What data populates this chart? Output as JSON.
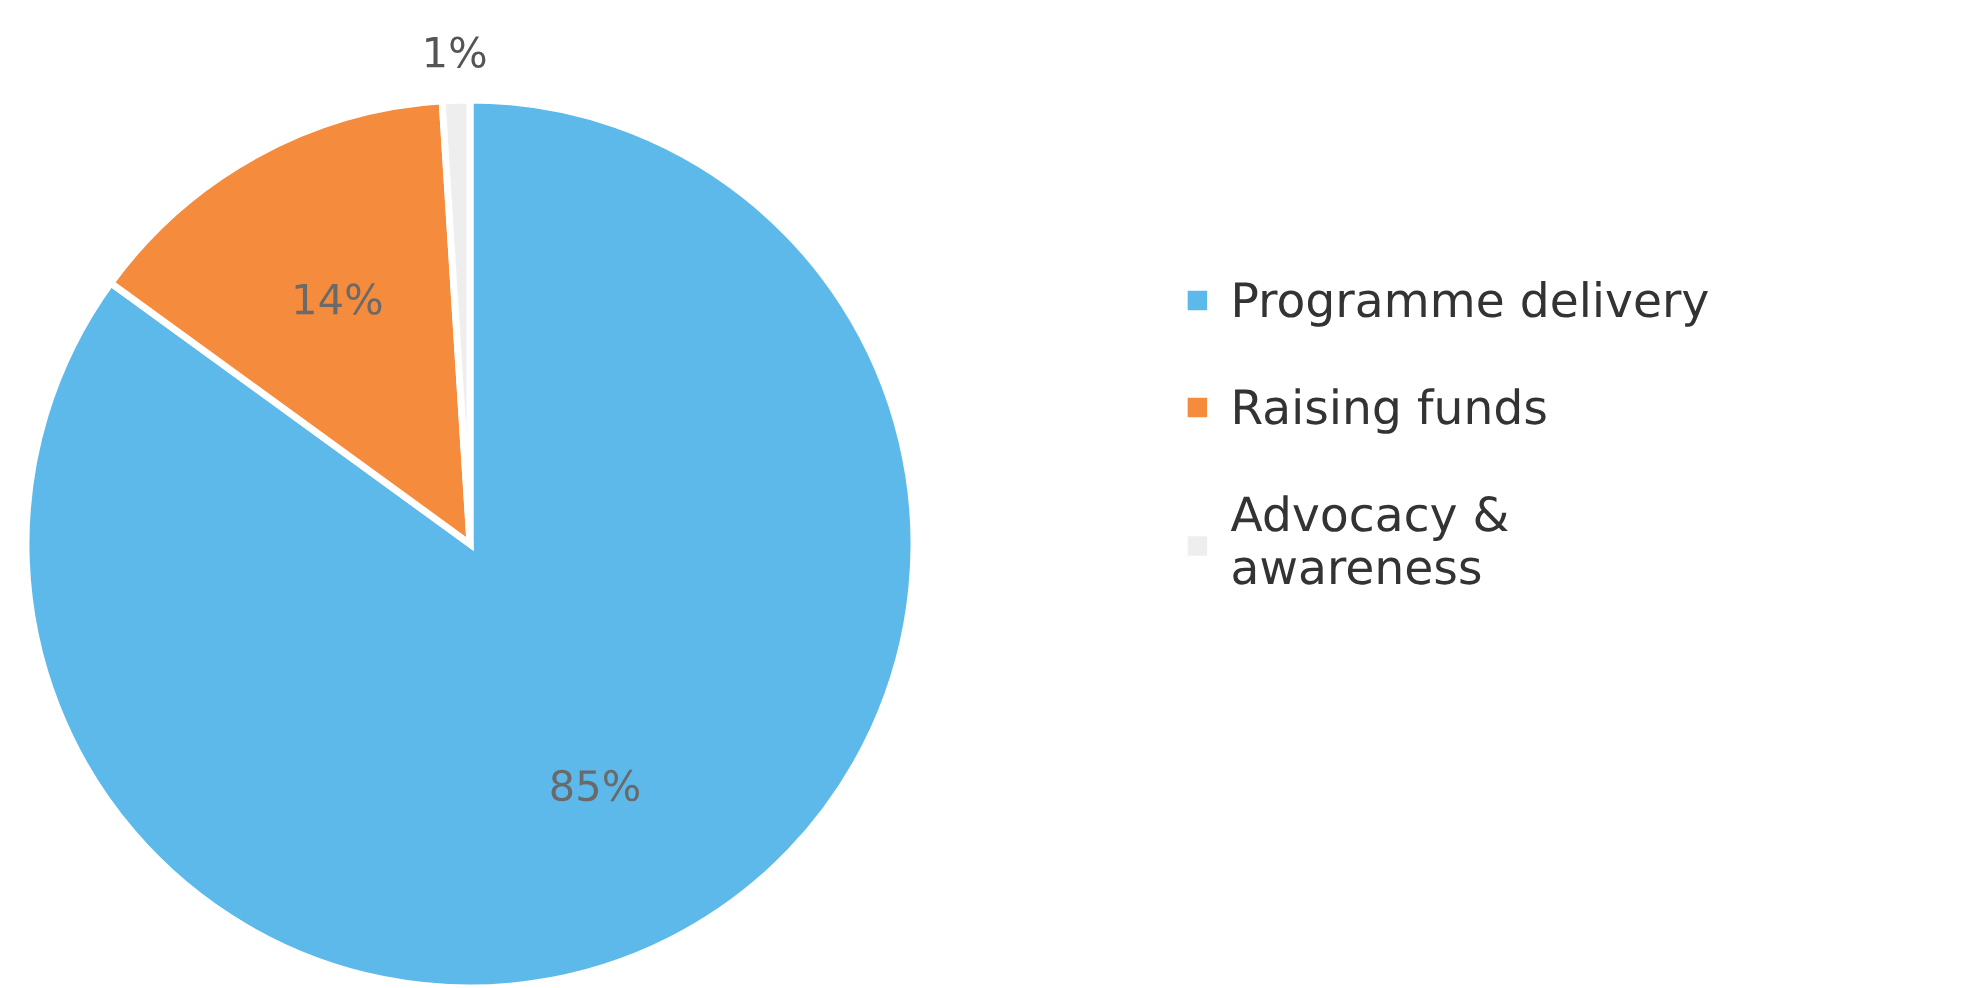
{
  "chart_data": {
    "type": "pie",
    "categories": [
      "Programme delivery",
      "Raising funds",
      "Advocacy &\nawareness"
    ],
    "values": [
      85,
      14,
      1
    ],
    "colors": [
      "#5cb9e9",
      "#f58b3d",
      "#eeeeee"
    ],
    "value_labels": [
      "85%",
      "14%",
      "1%"
    ],
    "legend": "right"
  }
}
